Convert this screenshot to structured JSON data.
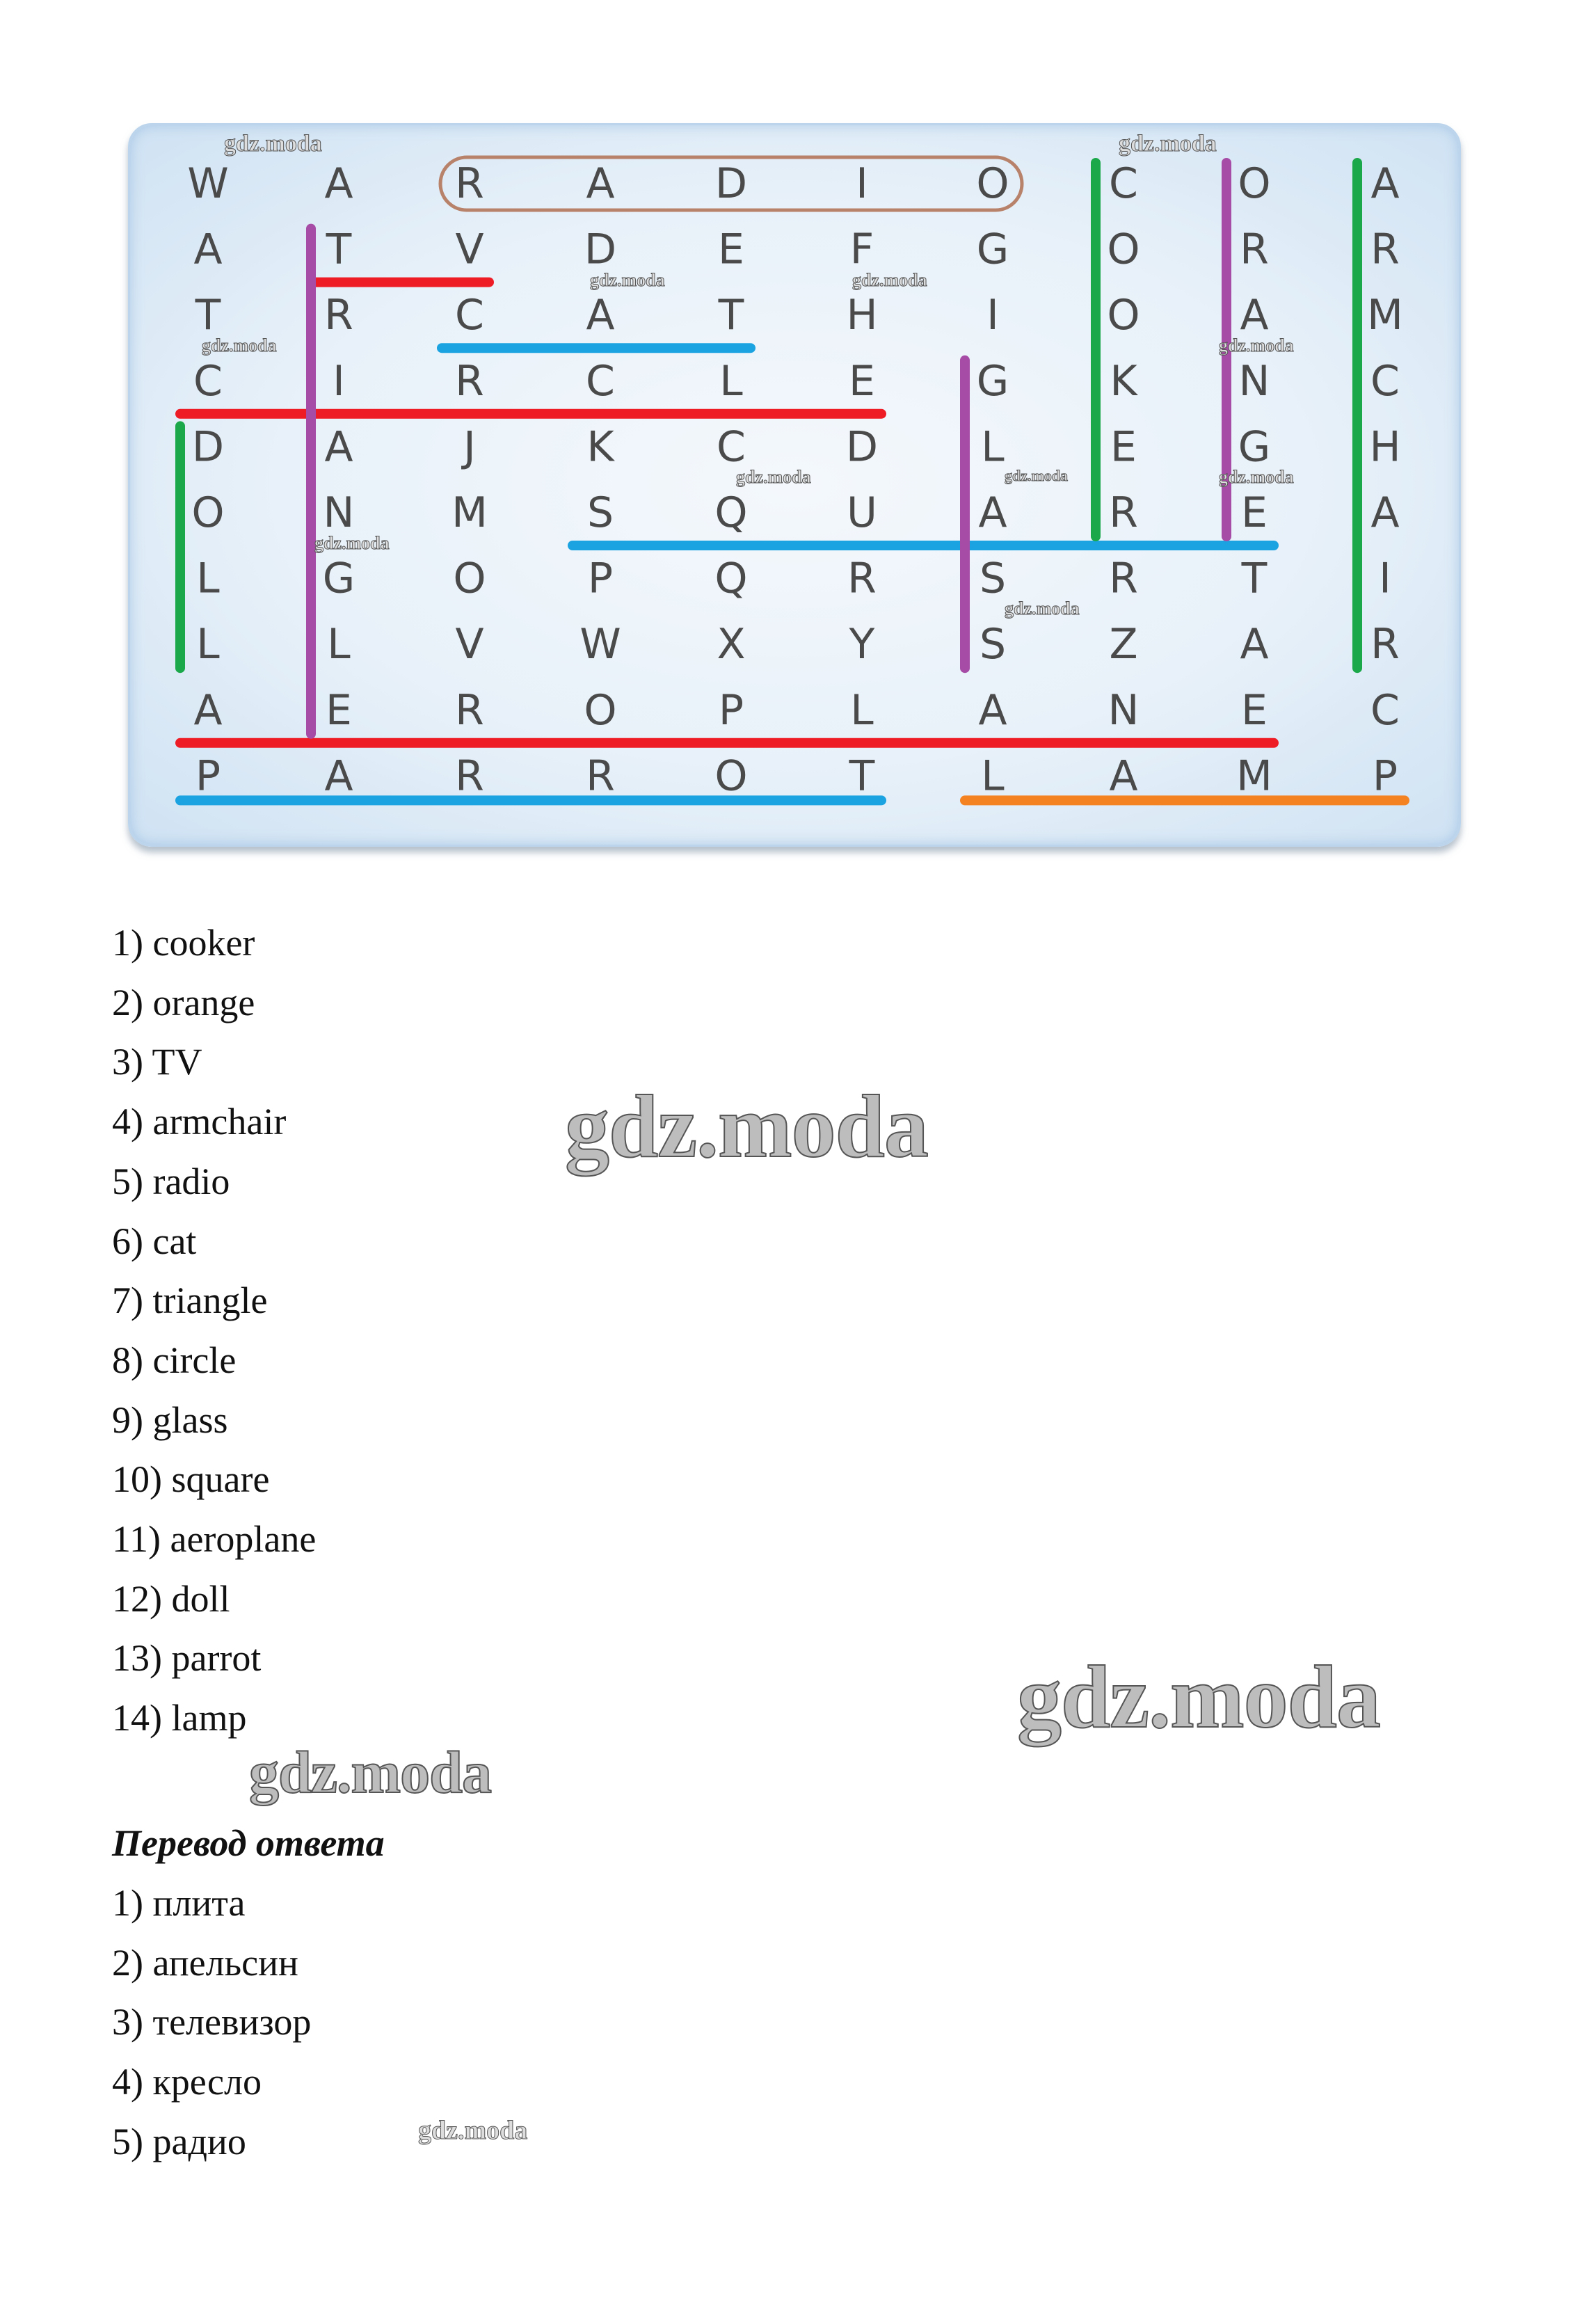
{
  "puzzle": {
    "grid": [
      [
        "W",
        "A",
        "R",
        "A",
        "D",
        "I",
        "O",
        "C",
        "O",
        "A"
      ],
      [
        "A",
        "T",
        "V",
        "D",
        "E",
        "F",
        "G",
        "O",
        "R",
        "R"
      ],
      [
        "T",
        "R",
        "C",
        "A",
        "T",
        "H",
        "I",
        "O",
        "A",
        "M"
      ],
      [
        "C",
        "I",
        "R",
        "C",
        "L",
        "E",
        "G",
        "K",
        "N",
        "C"
      ],
      [
        "D",
        "A",
        "J",
        "K",
        "C",
        "D",
        "L",
        "E",
        "G",
        "H"
      ],
      [
        "O",
        "N",
        "M",
        "S",
        "Q",
        "U",
        "A",
        "R",
        "E",
        "A"
      ],
      [
        "L",
        "G",
        "O",
        "P",
        "Q",
        "R",
        "S",
        "R",
        "T",
        "I"
      ],
      [
        "L",
        "L",
        "V",
        "W",
        "X",
        "Y",
        "S",
        "Z",
        "A",
        "R"
      ],
      [
        "A",
        "E",
        "R",
        "O",
        "P",
        "L",
        "A",
        "N",
        "E",
        "C"
      ],
      [
        "P",
        "A",
        "R",
        "R",
        "O",
        "T",
        "L",
        "A",
        "M",
        "P"
      ]
    ],
    "colors": {
      "red": "#ee1c25",
      "blue": "#1aa3e0",
      "green": "#1aa84a",
      "purple": "#a64ca6",
      "orange": "#f58220",
      "outline": "#b8826a"
    },
    "found_words": [
      {
        "word": "radio",
        "dir": "outline",
        "row": 0,
        "from": 2,
        "to": 6,
        "color": "outline"
      },
      {
        "word": "tv",
        "dir": "h",
        "row": 1,
        "from": 1,
        "to": 2,
        "color": "red"
      },
      {
        "word": "cat",
        "dir": "h",
        "row": 2,
        "from": 2,
        "to": 4,
        "color": "blue"
      },
      {
        "word": "circle",
        "dir": "h",
        "row": 3,
        "from": 0,
        "to": 5,
        "color": "red"
      },
      {
        "word": "square",
        "dir": "h",
        "row": 5,
        "from": 3,
        "to": 8,
        "color": "blue"
      },
      {
        "word": "aeroplane",
        "dir": "h",
        "row": 8,
        "from": 0,
        "to": 8,
        "color": "red"
      },
      {
        "word": "parrot",
        "dir": "h",
        "row": 9,
        "from": 0,
        "to": 5,
        "color": "blue"
      },
      {
        "word": "lamp",
        "dir": "h",
        "row": 9,
        "from": 6,
        "to": 9,
        "color": "orange"
      },
      {
        "word": "triangle",
        "dir": "v",
        "col": 1,
        "from": 1,
        "to": 8,
        "color": "purple"
      },
      {
        "word": "doll",
        "dir": "v",
        "col": 0,
        "from": 4,
        "to": 7,
        "color": "green"
      },
      {
        "word": "glass",
        "dir": "v",
        "col": 6,
        "from": 3,
        "to": 7,
        "color": "purple"
      },
      {
        "word": "cooker",
        "dir": "v",
        "col": 7,
        "from": 0,
        "to": 5,
        "color": "green"
      },
      {
        "word": "orange",
        "dir": "v",
        "col": 8,
        "from": 0,
        "to": 5,
        "color": "purple"
      },
      {
        "word": "armchair",
        "dir": "v",
        "col": 9,
        "from": 0,
        "to": 7,
        "color": "green"
      }
    ]
  },
  "answers": [
    "1) cooker",
    "2) orange",
    "3) TV",
    "4) armchair",
    "5) radio",
    "6) cat",
    "7) triangle",
    "8) circle",
    "9) glass",
    "10) square",
    "11) aeroplane",
    "12) doll",
    "13) parrot",
    "14) lamp"
  ],
  "translation": {
    "heading": "Перевод ответа",
    "items": [
      "1) плита",
      "2) апельсин",
      "3) телевизор",
      "4) кресло",
      "5) радио"
    ]
  },
  "watermark": "gdz.moda"
}
